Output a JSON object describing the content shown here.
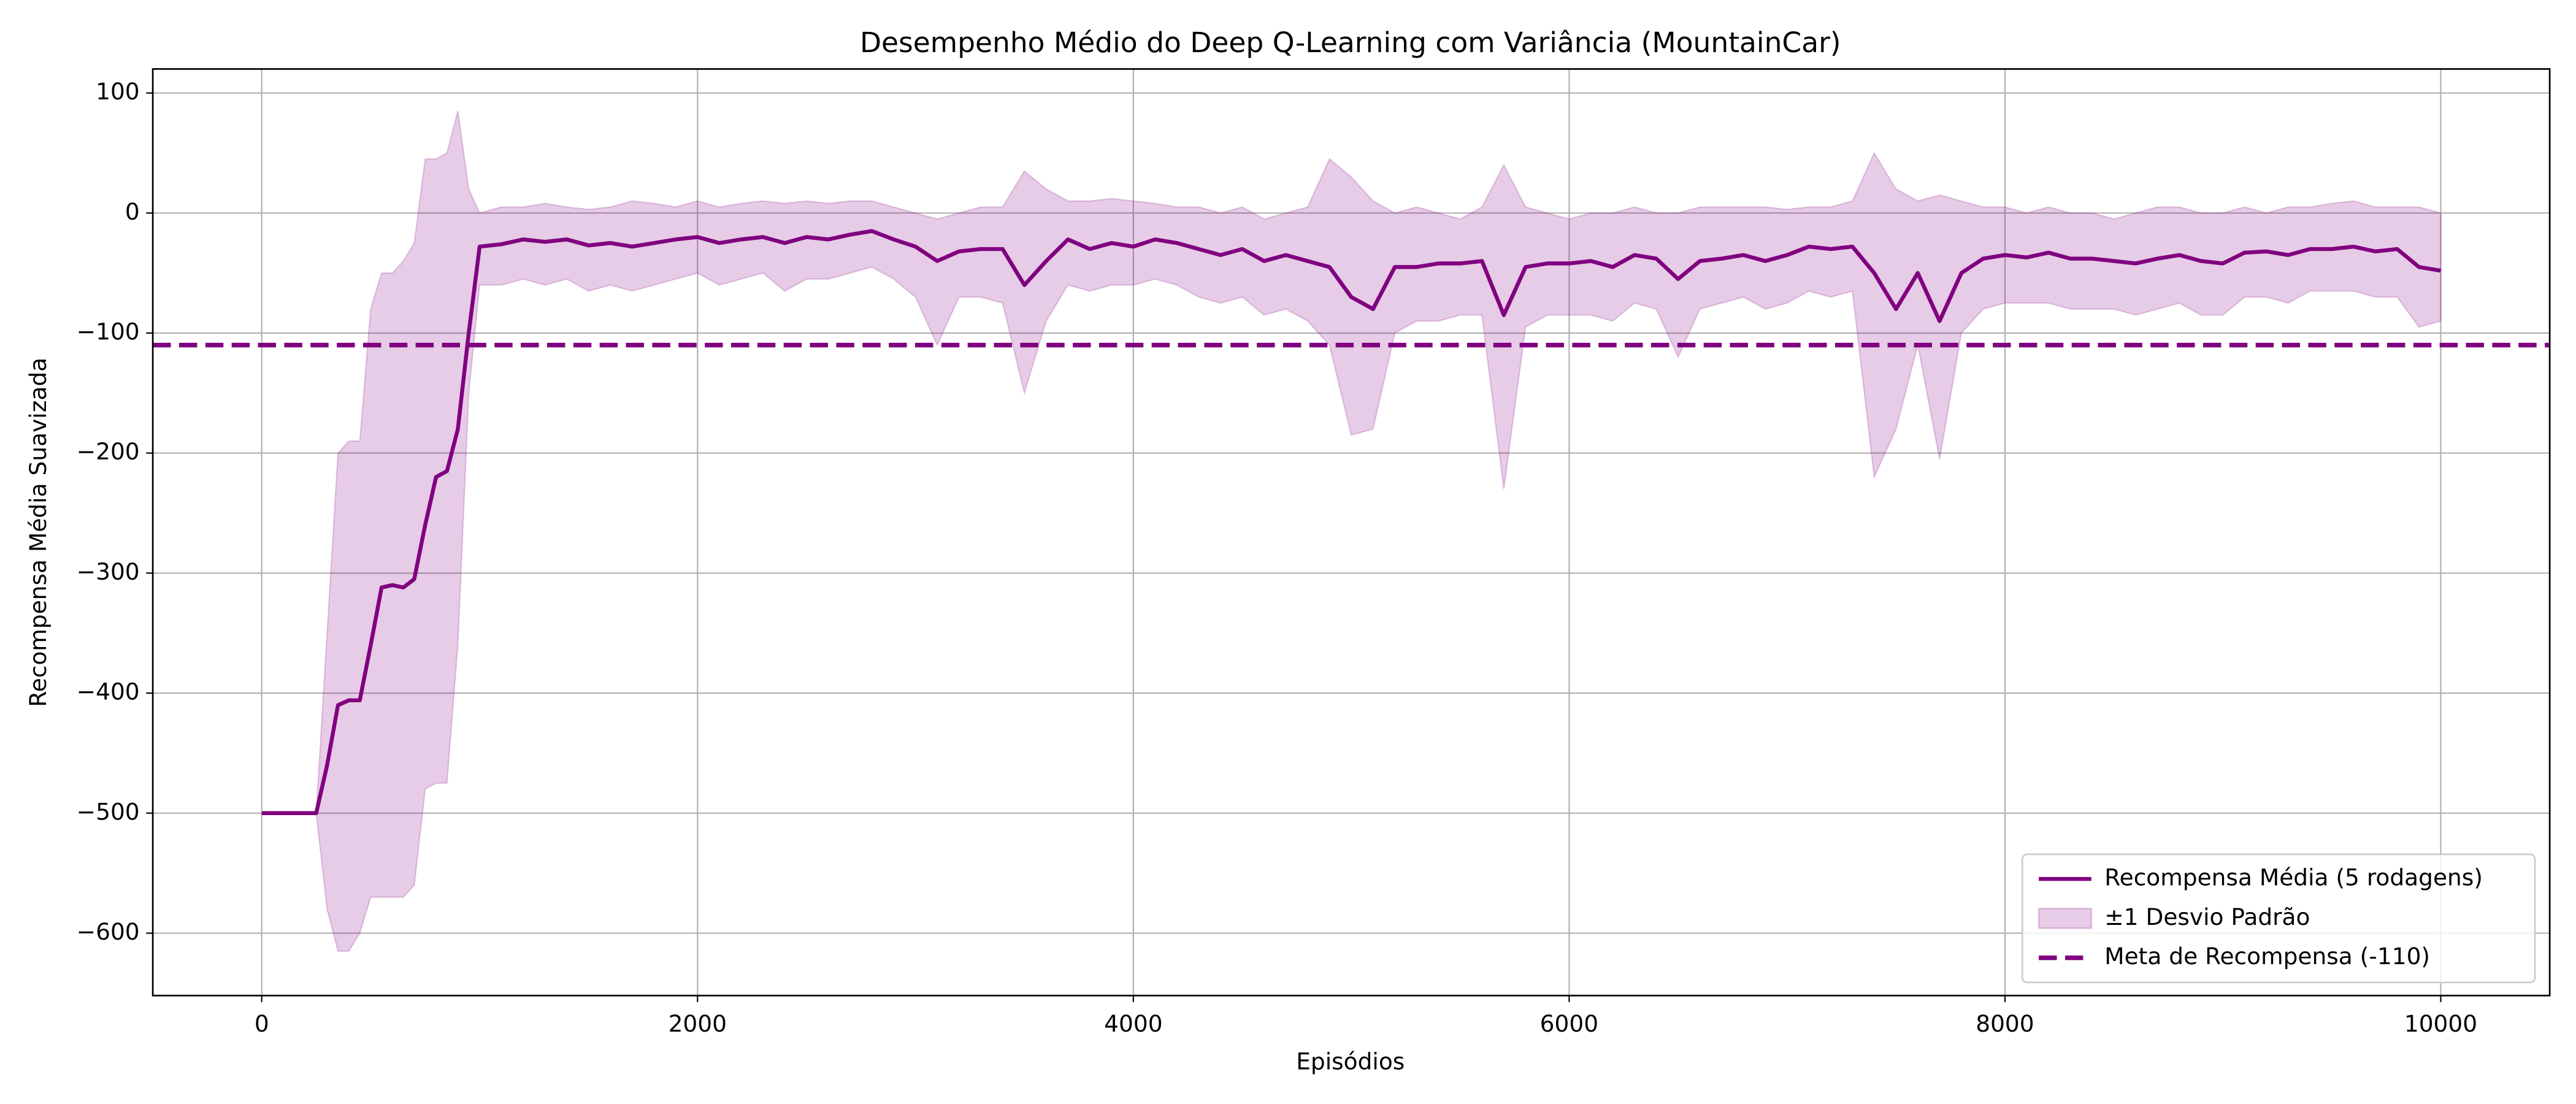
{
  "chart_data": {
    "type": "line",
    "title": "Desempenho Médio do Deep Q-Learning com Variância (MountainCar)",
    "x_label": "Episódios",
    "y_label": "Recompensa Média Suavizada",
    "xlim": [
      -500,
      10500
    ],
    "ylim": [
      -652,
      120
    ],
    "xticks": [
      0,
      2000,
      4000,
      6000,
      8000,
      10000
    ],
    "yticks": [
      {
        "value": -600,
        "label": "−600"
      },
      {
        "value": -500,
        "label": "−500"
      },
      {
        "value": -400,
        "label": "−400"
      },
      {
        "value": -300,
        "label": "−300"
      },
      {
        "value": -200,
        "label": "−200"
      },
      {
        "value": -100,
        "label": "−100"
      },
      0,
      100
    ],
    "grid": true,
    "legend": "lower right",
    "x": [
      0,
      100,
      200,
      250,
      300,
      350,
      400,
      450,
      500,
      550,
      600,
      650,
      700,
      750,
      800,
      850,
      900,
      950,
      1000,
      1100,
      1200,
      1300,
      1400,
      1500,
      1600,
      1700,
      1800,
      1900,
      2000,
      2100,
      2200,
      2300,
      2400,
      2500,
      2600,
      2700,
      2800,
      2900,
      3000,
      3100,
      3200,
      3300,
      3400,
      3500,
      3600,
      3700,
      3800,
      3900,
      4000,
      4100,
      4200,
      4300,
      4400,
      4500,
      4600,
      4700,
      4800,
      4900,
      5000,
      5100,
      5200,
      5300,
      5400,
      5500,
      5600,
      5700,
      5800,
      5900,
      6000,
      6100,
      6200,
      6300,
      6400,
      6500,
      6600,
      6700,
      6800,
      6900,
      7000,
      7100,
      7200,
      7300,
      7400,
      7500,
      7600,
      7700,
      7800,
      7900,
      8000,
      8100,
      8200,
      8300,
      8400,
      8500,
      8600,
      8700,
      8800,
      8900,
      9000,
      9100,
      9200,
      9300,
      9400,
      9500,
      9600,
      9700,
      9800,
      9900,
      10000
    ],
    "series": [
      {
        "name": "Recompensa Média (5 rodagens)",
        "color": "#800080",
        "kind": "line",
        "values": [
          -500,
          -500,
          -500,
          -500,
          -460,
          -410,
          -406,
          -406,
          -360,
          -312,
          -310,
          -312,
          -305,
          -260,
          -220,
          -215,
          -180,
          -100,
          -28,
          -26,
          -22,
          -24,
          -22,
          -27,
          -25,
          -28,
          -25,
          -22,
          -20,
          -25,
          -22,
          -20,
          -25,
          -20,
          -22,
          -18,
          -15,
          -22,
          -28,
          -40,
          -32,
          -30,
          -30,
          -60,
          -40,
          -22,
          -30,
          -25,
          -28,
          -22,
          -25,
          -30,
          -35,
          -30,
          -40,
          -35,
          -40,
          -45,
          -70,
          -80,
          -45,
          -45,
          -42,
          -42,
          -40,
          -85,
          -45,
          -42,
          -42,
          -40,
          -45,
          -35,
          -38,
          -55,
          -40,
          -38,
          -35,
          -40,
          -35,
          -28,
          -30,
          -28,
          -50,
          -80,
          -50,
          -90,
          -50,
          -38,
          -35,
          -37,
          -33,
          -38,
          -38,
          -40,
          -42,
          -38,
          -35,
          -40,
          -42,
          -33,
          -32,
          -35,
          -30,
          -30,
          -28,
          -32,
          -30,
          -45,
          -48
        ]
      },
      {
        "name": "±1 Desvio Padrão",
        "color": "#800080",
        "kind": "band",
        "upper": [
          -500,
          -500,
          -500,
          -500,
          -350,
          -200,
          -190,
          -190,
          -80,
          -50,
          -50,
          -40,
          -25,
          45,
          45,
          50,
          85,
          20,
          0,
          5,
          5,
          8,
          5,
          3,
          5,
          10,
          8,
          5,
          10,
          5,
          8,
          10,
          8,
          10,
          8,
          10,
          10,
          5,
          0,
          -5,
          0,
          5,
          5,
          35,
          20,
          10,
          10,
          12,
          10,
          8,
          5,
          5,
          0,
          5,
          -5,
          0,
          5,
          45,
          30,
          10,
          0,
          5,
          0,
          -5,
          5,
          40,
          5,
          0,
          -5,
          0,
          0,
          5,
          0,
          0,
          5,
          5,
          5,
          5,
          3,
          5,
          5,
          10,
          50,
          20,
          10,
          15,
          10,
          5,
          5,
          0,
          5,
          0,
          0,
          -5,
          0,
          5,
          5,
          0,
          0,
          5,
          0,
          5,
          5,
          8,
          10,
          5,
          5,
          5,
          0
        ],
        "lower": [
          -500,
          -500,
          -500,
          -500,
          -580,
          -615,
          -615,
          -600,
          -570,
          -570,
          -570,
          -570,
          -560,
          -480,
          -475,
          -475,
          -360,
          -150,
          -60,
          -60,
          -55,
          -60,
          -55,
          -65,
          -60,
          -65,
          -60,
          -55,
          -50,
          -60,
          -55,
          -50,
          -65,
          -55,
          -55,
          -50,
          -45,
          -55,
          -70,
          -110,
          -70,
          -70,
          -75,
          -150,
          -90,
          -60,
          -65,
          -60,
          -60,
          -55,
          -60,
          -70,
          -75,
          -70,
          -85,
          -80,
          -90,
          -110,
          -185,
          -180,
          -100,
          -90,
          -90,
          -85,
          -85,
          -230,
          -95,
          -85,
          -85,
          -85,
          -90,
          -75,
          -80,
          -120,
          -80,
          -75,
          -70,
          -80,
          -75,
          -65,
          -70,
          -65,
          -220,
          -180,
          -110,
          -205,
          -100,
          -80,
          -75,
          -75,
          -75,
          -80,
          -80,
          -80,
          -85,
          -80,
          -75,
          -85,
          -85,
          -70,
          -70,
          -75,
          -65,
          -65,
          -65,
          -70,
          -70,
          -95,
          -90
        ]
      },
      {
        "name": "Meta de Recompensa (-110)",
        "color": "#800080",
        "kind": "hline",
        "value": -110
      }
    ]
  }
}
